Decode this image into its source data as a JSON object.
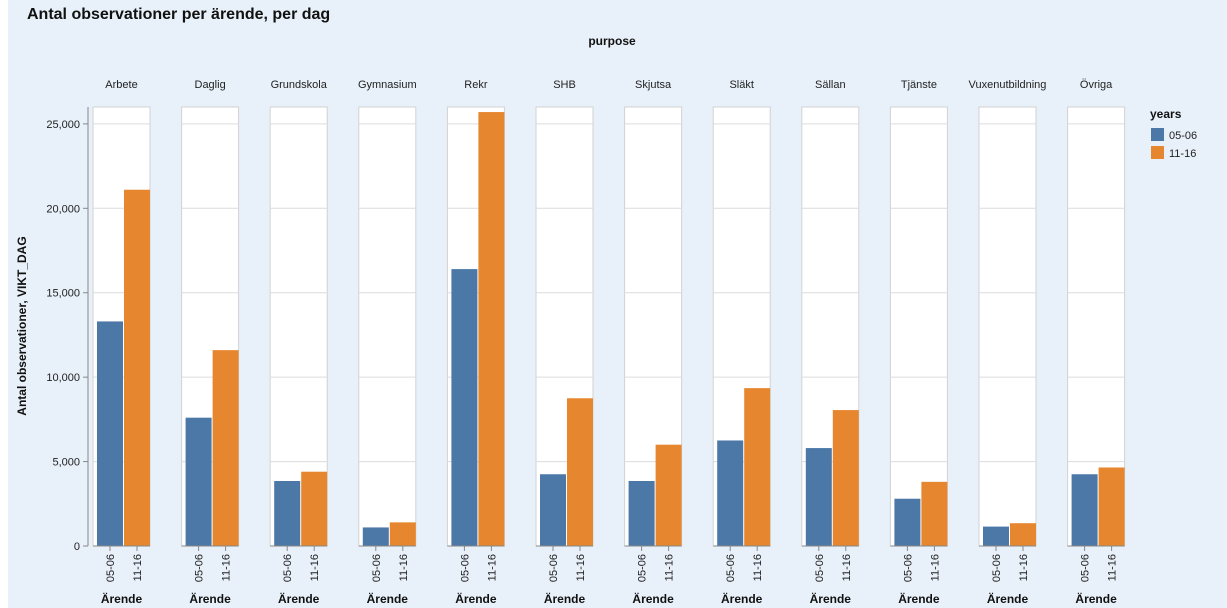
{
  "chart_data": {
    "type": "bar",
    "title": "Antal observationer per ärende, per dag",
    "facet_title": "purpose",
    "ylabel": "Antal observationer, VIKT_DAG",
    "xlabel": "Ärende",
    "ylim": [
      0,
      26000
    ],
    "yticks": [
      0,
      5000,
      10000,
      15000,
      20000,
      25000
    ],
    "ytick_labels": [
      "0",
      "5,000",
      "10,000",
      "15,000",
      "20,000",
      "25,000"
    ],
    "grid": true,
    "legend": {
      "title": "years",
      "placement": "top-right"
    },
    "series": [
      {
        "name": "05-06",
        "color": "#4c78a8"
      },
      {
        "name": "11-16",
        "color": "#e6862f"
      }
    ],
    "categories": [
      "Arbete",
      "Daglig",
      "Grundskola",
      "Gymnasium",
      "Rekr",
      "SHB",
      "Skjutsa",
      "Släkt",
      "Sällan",
      "Tjänste",
      "Vuxenutbildning",
      "Övriga"
    ],
    "values": {
      "05-06": [
        13300,
        7600,
        3850,
        1100,
        16400,
        4250,
        3850,
        6250,
        5800,
        2800,
        1150,
        4250
      ],
      "11-16": [
        21100,
        11600,
        4400,
        1400,
        25700,
        8750,
        6000,
        9350,
        8050,
        3800,
        1350,
        4650
      ]
    }
  }
}
